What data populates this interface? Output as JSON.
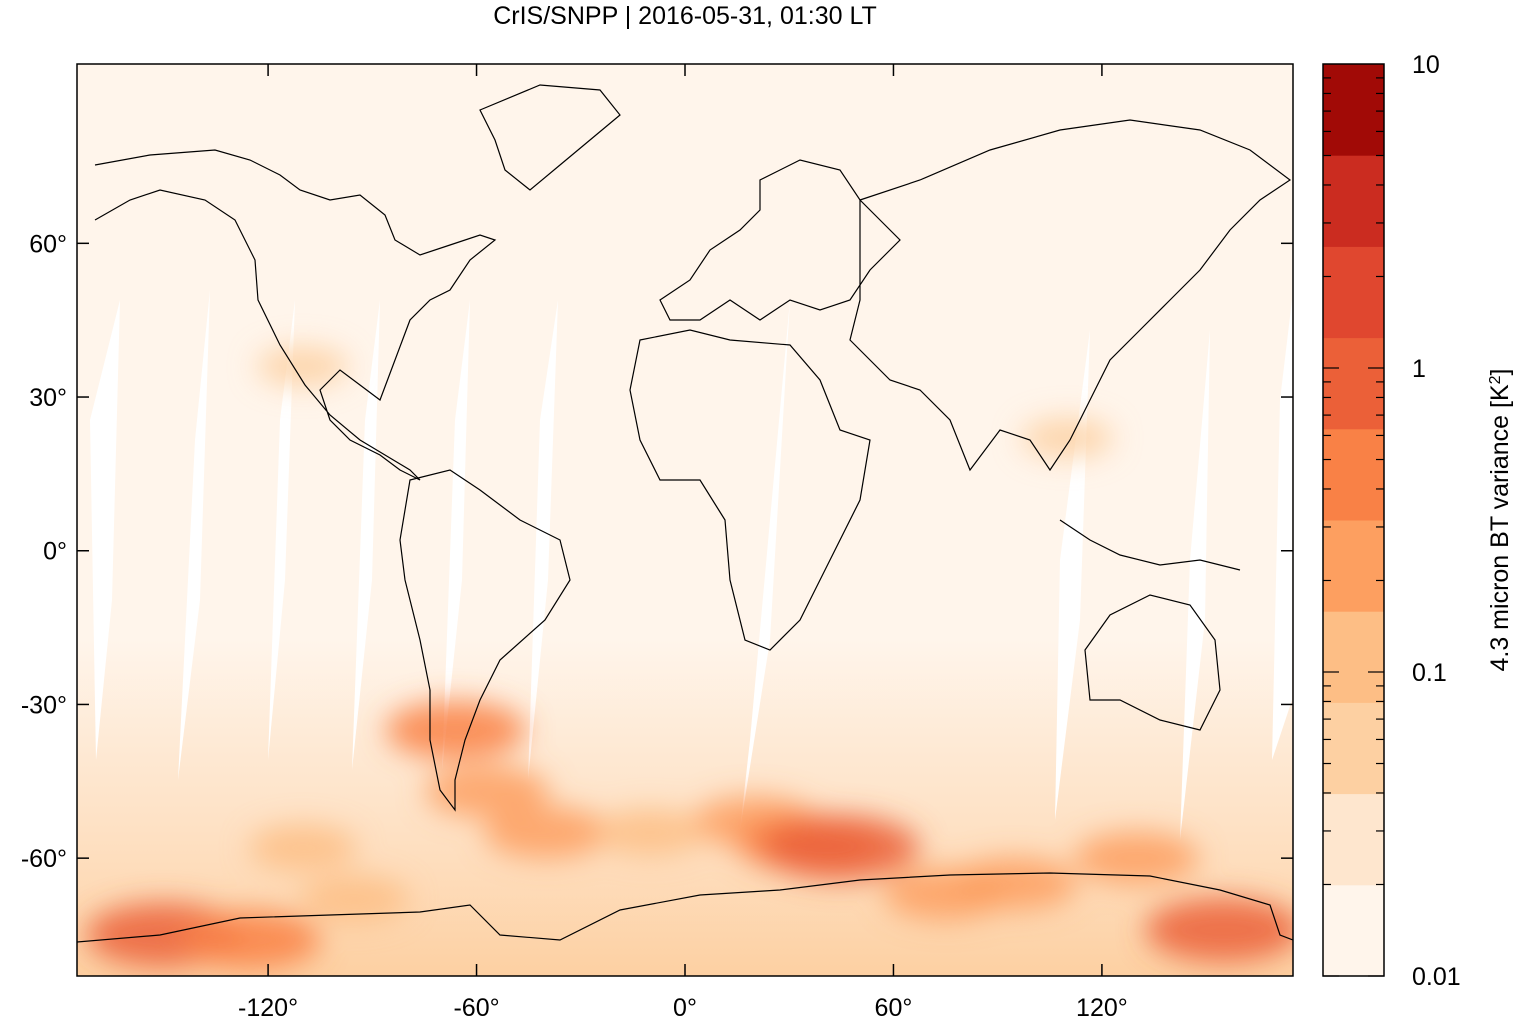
{
  "chart_data": {
    "type": "heatmap",
    "title": "CrIS/SNPP | 2016-05-31, 01:30 LT",
    "xlabel": "",
    "ylabel": "",
    "xlim": [
      -175,
      175
    ],
    "ylim": [
      -83,
      95
    ],
    "x_ticks": [
      {
        "value": -120,
        "label": "-120°"
      },
      {
        "value": -60,
        "label": "-60°"
      },
      {
        "value": 0,
        "label": "0°"
      },
      {
        "value": 60,
        "label": "60°"
      },
      {
        "value": 120,
        "label": "120°"
      }
    ],
    "y_ticks": [
      {
        "value": 60,
        "label": "60°"
      },
      {
        "value": 30,
        "label": "30°"
      },
      {
        "value": 0,
        "label": "0°"
      },
      {
        "value": -30,
        "label": "-30°"
      },
      {
        "value": -60,
        "label": "-60°"
      }
    ],
    "colorbar": {
      "label": "4.3 micron BT variance [K²]",
      "label_main": "4.3 micron BT variance [K",
      "label_sup": "2",
      "label_end": "]",
      "scale": "log",
      "range": [
        0.01,
        10
      ],
      "tick_labels": [
        {
          "value": 10,
          "label": "10"
        },
        {
          "value": 1,
          "label": "1"
        },
        {
          "value": 0.1,
          "label": "0.1"
        },
        {
          "value": 0.01,
          "label": "0.01"
        }
      ],
      "colors": [
        "#fff5eb",
        "#fee6ce",
        "#fdd0a2",
        "#fdbe85",
        "#fd9f60",
        "#f98146",
        "#eb6038",
        "#e0472f",
        "#cb2c20",
        "#a10a06"
      ]
    },
    "regions": [
      {
        "lon": -150,
        "lat": -75,
        "level": 6
      },
      {
        "lon": -125,
        "lat": -76,
        "level": 5
      },
      {
        "lon": -66,
        "lat": -35,
        "level": 5
      },
      {
        "lon": -57,
        "lat": -47,
        "level": 4
      },
      {
        "lon": -40,
        "lat": -55,
        "level": 4
      },
      {
        "lon": 20,
        "lat": -53,
        "level": 4
      },
      {
        "lon": 35,
        "lat": -57,
        "level": 5
      },
      {
        "lon": 45,
        "lat": -58,
        "level": 6
      },
      {
        "lon": 75,
        "lat": -67,
        "level": 4
      },
      {
        "lon": 95,
        "lat": -65,
        "level": 4
      },
      {
        "lon": 130,
        "lat": -60,
        "level": 4
      },
      {
        "lon": 155,
        "lat": -74,
        "level": 6
      },
      {
        "lon": -95,
        "lat": -68,
        "level": 3
      },
      {
        "lon": -110,
        "lat": -58,
        "level": 3
      },
      {
        "lon": -10,
        "lat": -55,
        "level": 3
      },
      {
        "lon": -110,
        "lat": 36,
        "level": 2
      },
      {
        "lon": 110,
        "lat": 22,
        "level": 2
      }
    ]
  }
}
